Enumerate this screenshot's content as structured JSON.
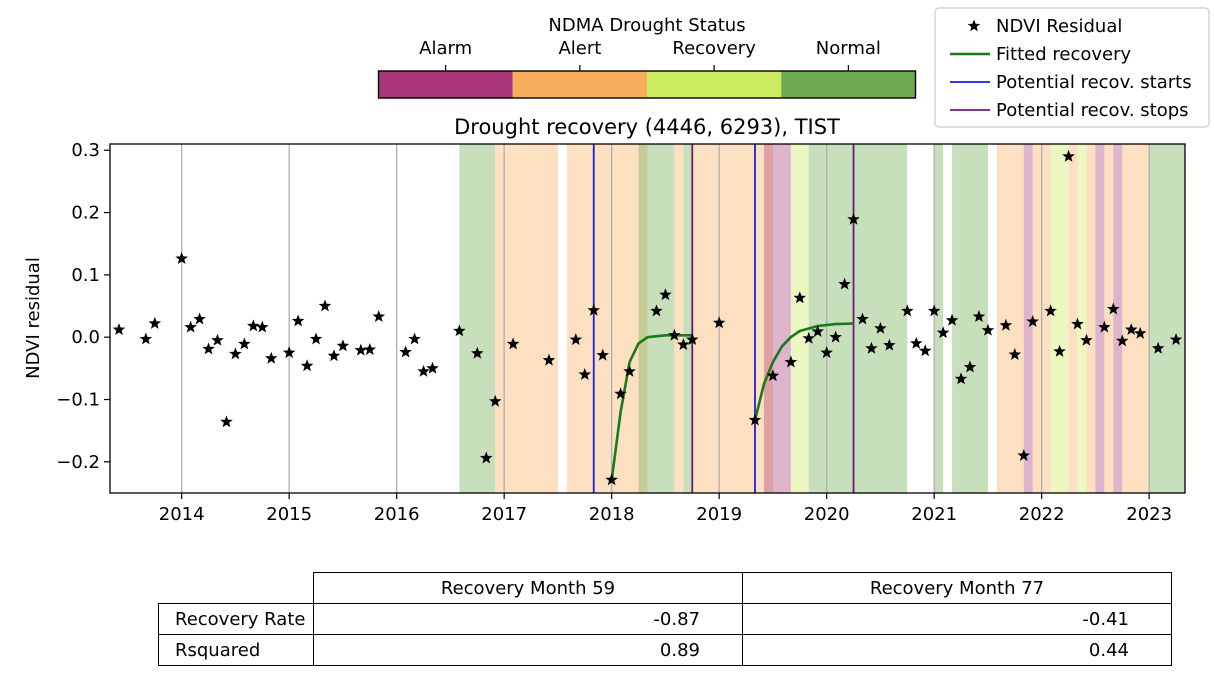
{
  "chart_data": {
    "type": "scatter",
    "title": "Drought recovery (4446, 6293), TIST",
    "xlabel": "",
    "ylabel": "NDVI residual",
    "xlim": [
      "2013-05-01",
      "2023-05-01"
    ],
    "ylim": [
      -0.25,
      0.31
    ],
    "x_ticks": [
      "2014",
      "2015",
      "2016",
      "2017",
      "2018",
      "2019",
      "2020",
      "2021",
      "2022",
      "2023"
    ],
    "y_ticks": [
      "0.3",
      "0.2",
      "0.1",
      "0.0",
      "−0.1",
      "−0.2"
    ],
    "y_tick_values": [
      0.3,
      0.2,
      0.1,
      0.0,
      -0.1,
      -0.2
    ],
    "grid": "vertical lines at year ticks",
    "series": [
      {
        "name": "NDVI Residual",
        "marker": "star",
        "color": "#000000",
        "points": [
          [
            "2013-06",
            0.012
          ],
          [
            "2013-09",
            -0.003
          ],
          [
            "2013-10",
            0.022
          ],
          [
            "2014-01",
            0.126
          ],
          [
            "2014-02",
            0.016
          ],
          [
            "2014-03",
            0.029
          ],
          [
            "2014-04",
            -0.019
          ],
          [
            "2014-05",
            -0.005
          ],
          [
            "2014-06",
            -0.136
          ],
          [
            "2014-07",
            -0.027
          ],
          [
            "2014-08",
            -0.011
          ],
          [
            "2014-09",
            0.018
          ],
          [
            "2014-10",
            0.016
          ],
          [
            "2014-11",
            -0.034
          ],
          [
            "2015-01",
            -0.025
          ],
          [
            "2015-02",
            0.026
          ],
          [
            "2015-03",
            -0.046
          ],
          [
            "2015-04",
            -0.003
          ],
          [
            "2015-05",
            0.05
          ],
          [
            "2015-06",
            -0.03
          ],
          [
            "2015-07",
            -0.014
          ],
          [
            "2015-09",
            -0.021
          ],
          [
            "2015-10",
            -0.02
          ],
          [
            "2015-11",
            0.033
          ],
          [
            "2016-02",
            -0.024
          ],
          [
            "2016-03",
            -0.003
          ],
          [
            "2016-04",
            -0.055
          ],
          [
            "2016-05",
            -0.05
          ],
          [
            "2016-08",
            0.01
          ],
          [
            "2016-10",
            -0.026
          ],
          [
            "2016-11",
            -0.194
          ],
          [
            "2016-12",
            -0.103
          ],
          [
            "2017-02",
            -0.011
          ],
          [
            "2017-06",
            -0.037
          ],
          [
            "2017-09",
            -0.004
          ],
          [
            "2017-10",
            -0.06
          ],
          [
            "2017-11",
            0.043
          ],
          [
            "2017-12",
            -0.029
          ],
          [
            "2018-01",
            -0.229
          ],
          [
            "2018-02",
            -0.091
          ],
          [
            "2018-03",
            -0.055
          ],
          [
            "2018-06",
            0.042
          ],
          [
            "2018-07",
            0.068
          ],
          [
            "2018-08",
            0.003
          ],
          [
            "2018-09",
            -0.012
          ],
          [
            "2018-10",
            -0.004
          ],
          [
            "2019-01",
            0.023
          ],
          [
            "2019-05",
            -0.133
          ],
          [
            "2019-07",
            -0.062
          ],
          [
            "2019-09",
            -0.04
          ],
          [
            "2019-10",
            0.063
          ],
          [
            "2019-11",
            -0.002
          ],
          [
            "2019-12",
            0.009
          ],
          [
            "2020-01",
            -0.025
          ],
          [
            "2020-02",
            0.0
          ],
          [
            "2020-03",
            0.085
          ],
          [
            "2020-04",
            0.189
          ],
          [
            "2020-05",
            0.029
          ],
          [
            "2020-06",
            -0.018
          ],
          [
            "2020-07",
            0.014
          ],
          [
            "2020-08",
            -0.013
          ],
          [
            "2020-10",
            0.042
          ],
          [
            "2020-11",
            -0.01
          ],
          [
            "2020-12",
            -0.022
          ],
          [
            "2021-01",
            0.042
          ],
          [
            "2021-02",
            0.007
          ],
          [
            "2021-03",
            0.027
          ],
          [
            "2021-04",
            -0.067
          ],
          [
            "2021-05",
            -0.048
          ],
          [
            "2021-06",
            0.033
          ],
          [
            "2021-07",
            0.011
          ],
          [
            "2021-09",
            0.019
          ],
          [
            "2021-10",
            -0.028
          ],
          [
            "2021-11",
            -0.19
          ],
          [
            "2021-12",
            0.025
          ],
          [
            "2022-02",
            0.042
          ],
          [
            "2022-03",
            -0.023
          ],
          [
            "2022-04",
            0.29
          ],
          [
            "2022-05",
            0.021
          ],
          [
            "2022-06",
            -0.005
          ],
          [
            "2022-08",
            0.016
          ],
          [
            "2022-09",
            0.045
          ],
          [
            "2022-10",
            -0.006
          ],
          [
            "2022-11",
            0.012
          ],
          [
            "2022-12",
            0.006
          ],
          [
            "2023-02",
            -0.018
          ],
          [
            "2023-04",
            -0.004
          ]
        ]
      },
      {
        "name": "Fitted recovery",
        "color": "#1a7a1a",
        "segments": [
          [
            [
              "2018-01",
              -0.229
            ],
            [
              "2018-02",
              -0.12
            ],
            [
              "2018-03",
              -0.04
            ],
            [
              "2018-04",
              -0.01
            ],
            [
              "2018-05",
              0.0
            ],
            [
              "2018-07",
              0.003
            ],
            [
              "2018-10",
              0.003
            ]
          ],
          [
            [
              "2019-05",
              -0.133
            ],
            [
              "2019-06",
              -0.075
            ],
            [
              "2019-07",
              -0.04
            ],
            [
              "2019-08",
              -0.015
            ],
            [
              "2019-09",
              0.0
            ],
            [
              "2019-10",
              0.01
            ],
            [
              "2019-12",
              0.018
            ],
            [
              "2020-02",
              0.021
            ],
            [
              "2020-04",
              0.022
            ]
          ]
        ]
      },
      {
        "name": "Potential recov. starts",
        "color": "#1f1fd6",
        "vlines": [
          "2017-11",
          "2019-05"
        ]
      },
      {
        "name": "Potential recov. stops",
        "color": "#6a1b7a",
        "vlines": [
          "2018-10",
          "2020-04"
        ]
      }
    ],
    "drought_status_bands": {
      "colors": {
        "Alarm": "#a93679",
        "Alert": "#f6ae5c",
        "Recovery": "#cdeb5e",
        "Normal": "#6eaa50"
      },
      "opacity": 0.38,
      "bands": [
        [
          "2016-08",
          "2016-11",
          "Normal"
        ],
        [
          "2016-12",
          "2017-01",
          "Alert"
        ],
        [
          "2017-02",
          "2017-03",
          "Alert"
        ],
        [
          "2017-04",
          "2017-06",
          "Alert"
        ],
        [
          "2017-08",
          "2018-04",
          "Alert"
        ],
        [
          "2018-04",
          "2018-05",
          "Normal"
        ],
        [
          "2018-06",
          "2018-06",
          "Normal"
        ],
        [
          "2018-07",
          "2018-07",
          "Normal"
        ],
        [
          "2018-08",
          "2018-08",
          "Alert"
        ],
        [
          "2018-09",
          "2018-09",
          "Normal"
        ],
        [
          "2018-10",
          "2018-10",
          "Alert"
        ],
        [
          "2018-11",
          "2018-11",
          "Alert"
        ],
        [
          "2018-12",
          "2019-01",
          "Alert"
        ],
        [
          "2019-02",
          "2019-03",
          "Alert"
        ],
        [
          "2019-04",
          "2019-06",
          "Alert"
        ],
        [
          "2019-06",
          "2019-08",
          "Alarm"
        ],
        [
          "2019-09",
          "2019-10",
          "Recovery"
        ],
        [
          "2019-11",
          "2020-09",
          "Normal"
        ],
        [
          "2021-01",
          "2021-01",
          "Normal"
        ],
        [
          "2021-03",
          "2021-06",
          "Normal"
        ],
        [
          "2021-08",
          "2021-10",
          "Alert"
        ],
        [
          "2021-11",
          "2021-11",
          "Alarm"
        ],
        [
          "2021-12",
          "2022-01",
          "Alert"
        ],
        [
          "2022-02",
          "2022-03",
          "Recovery"
        ],
        [
          "2022-04",
          "2022-04",
          "Alert"
        ],
        [
          "2022-05",
          "2022-05",
          "Recovery"
        ],
        [
          "2022-06",
          "2022-06",
          "Alert"
        ],
        [
          "2022-07",
          "2022-07",
          "Alarm"
        ],
        [
          "2022-08",
          "2022-08",
          "Alert"
        ],
        [
          "2022-09",
          "2022-09",
          "Alarm"
        ],
        [
          "2022-10",
          "2022-12",
          "Alert"
        ],
        [
          "2023-01",
          "2023-05",
          "Normal"
        ]
      ]
    },
    "colorbar": {
      "title": "NDMA Drought Status",
      "labels": [
        "Alarm",
        "Alert",
        "Recovery",
        "Normal"
      ],
      "colors": [
        "#a93679",
        "#f6ae5c",
        "#cdeb5e",
        "#6eaa50"
      ]
    },
    "legend": {
      "placement": "top-right",
      "entries": [
        "NDVI Residual",
        "Fitted recovery",
        "Potential recov. starts",
        "Potential recov. stops"
      ]
    }
  },
  "table": {
    "columns": [
      "Recovery Month 59",
      "Recovery Month 77"
    ],
    "rows": [
      {
        "label": "Recovery Rate",
        "values": [
          "-0.87",
          "-0.41"
        ]
      },
      {
        "label": "Rsquared",
        "values": [
          "0.89",
          "0.44"
        ]
      }
    ]
  }
}
